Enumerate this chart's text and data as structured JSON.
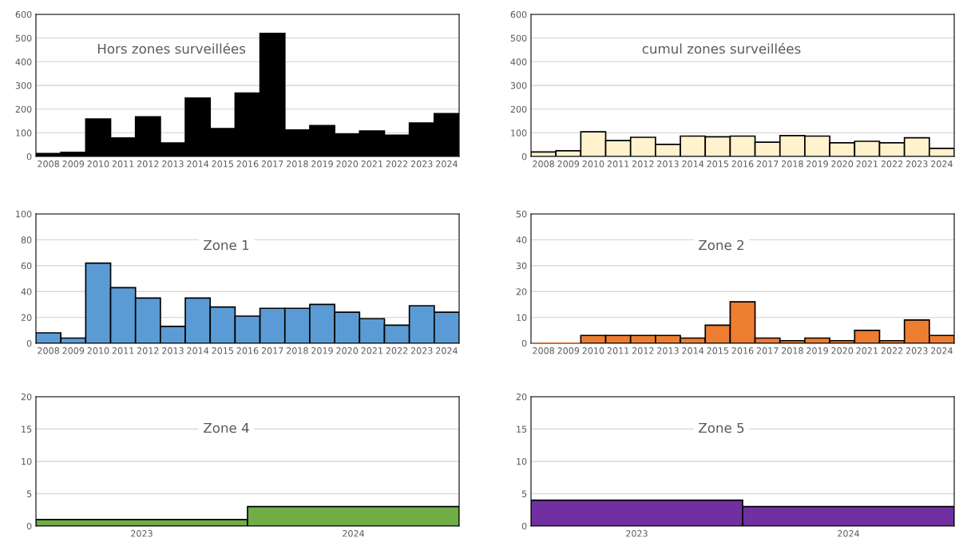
{
  "chart_data": [
    {
      "type": "bar",
      "title": "Hors zones surveillées",
      "categories": [
        "2008",
        "2009",
        "2010",
        "2011",
        "2012",
        "2013",
        "2014",
        "2015",
        "2016",
        "2017",
        "2018",
        "2019",
        "2020",
        "2021",
        "2022",
        "2023",
        "2024"
      ],
      "values": [
        12,
        17,
        158,
        78,
        167,
        57,
        247,
        118,
        268,
        520,
        112,
        130,
        95,
        108,
        90,
        141,
        181
      ],
      "color": "#000000",
      "ylim": [
        0,
        600
      ],
      "yticks": [
        0,
        100,
        200,
        300,
        400,
        500,
        600
      ],
      "grid": "y"
    },
    {
      "type": "bar",
      "title": "cumul zones surveillées",
      "categories": [
        "2008",
        "2009",
        "2010",
        "2011",
        "2012",
        "2013",
        "2014",
        "2015",
        "2016",
        "2017",
        "2018",
        "2019",
        "2020",
        "2021",
        "2022",
        "2023",
        "2024"
      ],
      "values": [
        19,
        24,
        104,
        67,
        81,
        51,
        86,
        83,
        86,
        60,
        88,
        86,
        58,
        64,
        58,
        79,
        34
      ],
      "color": "#fff2cc",
      "ylim": [
        0,
        600
      ],
      "yticks": [
        0,
        100,
        200,
        300,
        400,
        500,
        600
      ],
      "grid": "y"
    },
    {
      "type": "bar",
      "title": "Zone 1",
      "categories": [
        "2008",
        "2009",
        "2010",
        "2011",
        "2012",
        "2013",
        "2014",
        "2015",
        "2016",
        "2017",
        "2018",
        "2019",
        "2020",
        "2021",
        "2022",
        "2023",
        "2024"
      ],
      "values": [
        8,
        4,
        62,
        43,
        35,
        13,
        35,
        28,
        21,
        27,
        27,
        30,
        24,
        19,
        14,
        29,
        24
      ],
      "color": "#5b9bd5",
      "ylim": [
        0,
        100
      ],
      "yticks": [
        0,
        20,
        40,
        60,
        80,
        100
      ],
      "grid": "y"
    },
    {
      "type": "bar",
      "title": "Zone 2",
      "categories": [
        "2008",
        "2009",
        "2010",
        "2011",
        "2012",
        "2013",
        "2014",
        "2015",
        "2016",
        "2017",
        "2018",
        "2019",
        "2020",
        "2021",
        "2022",
        "2023",
        "2024"
      ],
      "values": [
        0,
        0,
        3,
        3,
        3,
        3,
        2,
        7,
        16,
        2,
        1,
        2,
        1,
        5,
        1,
        9,
        3
      ],
      "color": "#ed7d31",
      "ylim": [
        0,
        50
      ],
      "yticks": [
        0,
        10,
        20,
        30,
        40,
        50
      ],
      "grid": "y"
    },
    {
      "type": "bar",
      "title": "Zone 4",
      "categories": [
        "2023",
        "2024"
      ],
      "values": [
        1,
        3
      ],
      "color": "#70ad47",
      "ylim": [
        0,
        20
      ],
      "yticks": [
        0,
        5,
        10,
        15,
        20
      ],
      "grid": "y"
    },
    {
      "type": "bar",
      "title": "Zone 5",
      "categories": [
        "2023",
        "2024"
      ],
      "values": [
        4,
        3
      ],
      "color": "#7030a0",
      "ylim": [
        0,
        20
      ],
      "yticks": [
        0,
        5,
        10,
        15,
        20
      ],
      "grid": "y"
    }
  ]
}
